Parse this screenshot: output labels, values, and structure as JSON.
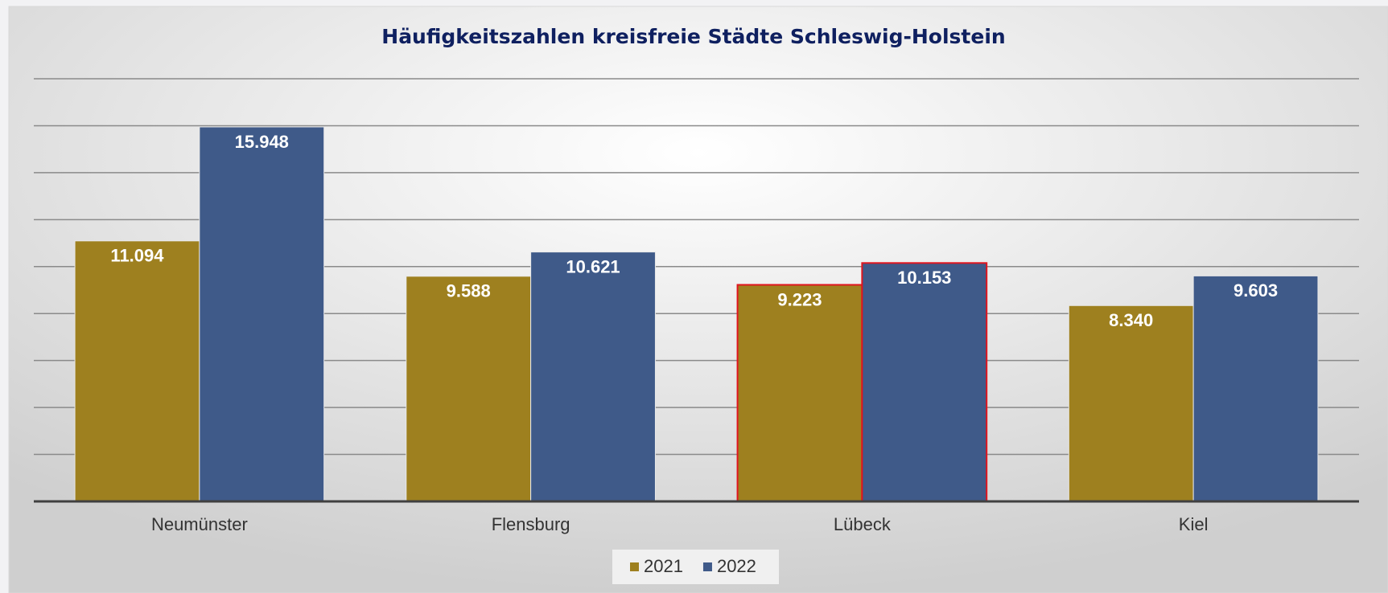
{
  "chart_data": {
    "type": "bar",
    "title": "Häufigkeitszahlen kreisfreie Städte Schleswig-Holstein",
    "categories": [
      "Neumünster",
      "Flensburg",
      "Lübeck",
      "Kiel"
    ],
    "series": [
      {
        "name": "2021",
        "color": "#9e801f",
        "values": [
          11094,
          9588,
          9223,
          8340
        ],
        "value_labels": [
          "11.094",
          "9.588",
          "9.223",
          "8.340"
        ]
      },
      {
        "name": "2022",
        "color": "#3f5a89",
        "values": [
          15948,
          10621,
          10153,
          9603
        ],
        "value_labels": [
          "15.948",
          "10.621",
          "10.153",
          "9.603"
        ]
      }
    ],
    "ylim": [
      0,
      18000
    ],
    "yticks": [
      0,
      2000,
      4000,
      6000,
      8000,
      10000,
      12000,
      14000,
      16000,
      18000
    ],
    "grid": true,
    "highlight": "Lübeck",
    "highlight_color": "#e0141e",
    "legend": "bottom"
  }
}
